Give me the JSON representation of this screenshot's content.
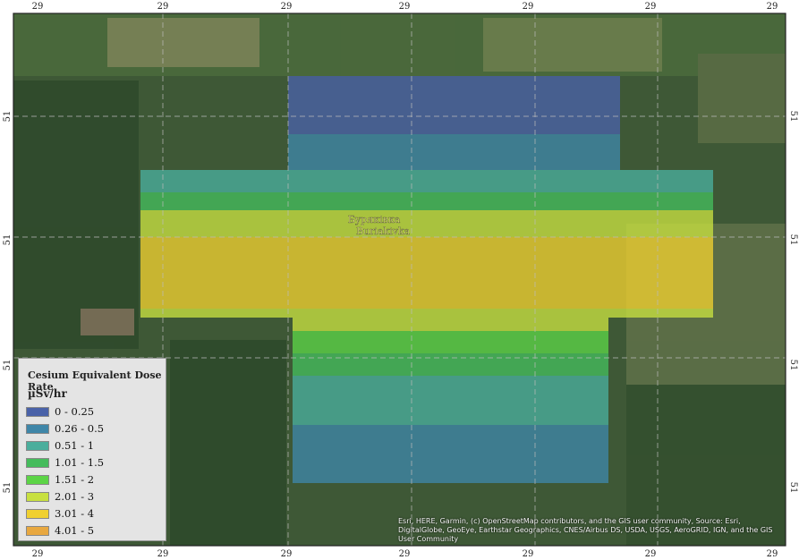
{
  "map": {
    "frame": {
      "top_labels": [
        "29",
        "29",
        "29",
        "29",
        "29",
        "29",
        "29"
      ],
      "bottom_labels": [
        "29",
        "29",
        "29",
        "29",
        "29",
        "29",
        "29"
      ],
      "left_labels": [
        "51",
        "51",
        "51",
        "51"
      ],
      "right_labels": [
        "51",
        "51",
        "51",
        "51"
      ]
    },
    "place_labels": [
      "Бурякiвка",
      "Buriakivka"
    ],
    "legend": {
      "title": "Cesium Equivalent Dose Rate",
      "unit": "µSv/hr",
      "items": [
        {
          "label": "0 - 0.25",
          "color": "#4a62a8"
        },
        {
          "label": "0.26 - 0.5",
          "color": "#3f86a8"
        },
        {
          "label": "0.51 - 1",
          "color": "#4aae9c"
        },
        {
          "label": "1.01 - 1.5",
          "color": "#45bc5c"
        },
        {
          "label": "1.51 - 2",
          "color": "#5cd446"
        },
        {
          "label": "2.01 - 3",
          "color": "#c8e040"
        },
        {
          "label": "3.01 - 4",
          "color": "#f0d030"
        },
        {
          "label": "4.01 - 5",
          "color": "#e8a840"
        }
      ]
    },
    "attribution": "Esri, HERE, Garmin, (c) OpenStreetMap contributors, and the GIS user community, Source: Esri, DigitalGlobe, GeoEye, Earthstar Geographics, CNES/Airbus DS, USDA, USGS, AeroGRID, IGN, and the GIS User Community"
  }
}
